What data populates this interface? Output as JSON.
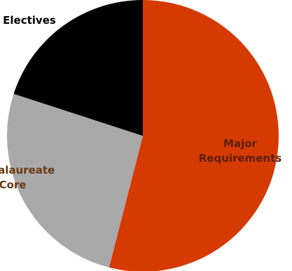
{
  "chart_data": {
    "type": "pie",
    "title": "",
    "slices": [
      {
        "label_lines": [
          "Major",
          "Requirements"
        ],
        "value": 54,
        "color": "#d53b00",
        "label_color": "#5a1f0c"
      },
      {
        "label_lines": [
          "Baccalaureate",
          "Core"
        ],
        "value": 26,
        "color": "#a9a9a9",
        "label_color": "#6b3a10"
      },
      {
        "label_lines": [
          "Electives"
        ],
        "value": 20,
        "color": "#000000",
        "label_color": "#000000"
      }
    ],
    "start_angle_deg": 0,
    "direction": "clockwise",
    "legend": "none"
  }
}
